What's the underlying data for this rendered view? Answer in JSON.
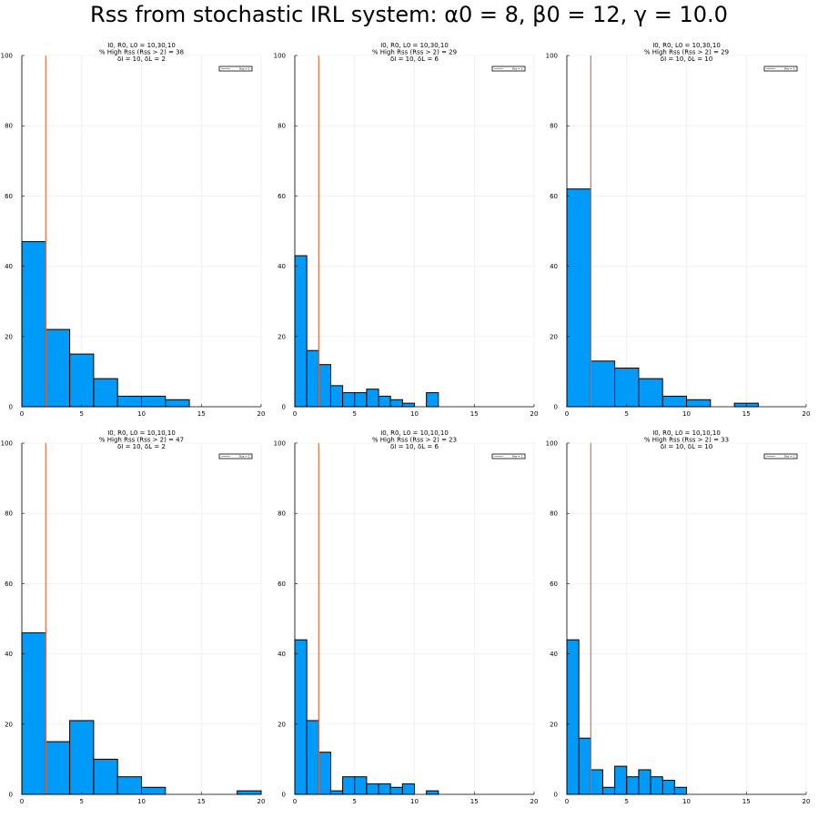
{
  "title": "Rss from stochastic IRL system: α0 = 8, β0 = 12, γ = 10.0",
  "colors": {
    "bar": "#009af9",
    "bar_edge": "#000000",
    "threshold": "#e26f46",
    "grid": "#e9e9e9"
  },
  "chart_data": [
    {
      "type": "bar",
      "title_lines": [
        "I0, R0, L0 = 10,30,10",
        "% High Rss (Rss > 2) = 38",
        "δI = 10, δL = 2"
      ],
      "legend": "Rss = 2",
      "bin_edges": [
        0,
        2,
        4,
        6,
        8,
        10,
        12,
        14
      ],
      "values": [
        47,
        22,
        15,
        8,
        3,
        3,
        2
      ],
      "threshold_x": 2,
      "xlim": [
        0,
        20
      ],
      "ylim": [
        0,
        100
      ],
      "xticks": [
        "0",
        "5",
        "10",
        "15",
        "20"
      ],
      "yticks": [
        "0",
        "20",
        "40",
        "60",
        "80",
        "100"
      ],
      "grid": true,
      "legend_position": "top-right"
    },
    {
      "type": "bar",
      "title_lines": [
        "I0, R0, L0 = 10,30,10",
        "% High Rss (Rss > 2) = 29",
        "δI = 10, δL = 6"
      ],
      "legend": "Rss = 2",
      "bin_edges": [
        0,
        1,
        2,
        3,
        4,
        5,
        6,
        7,
        8,
        9,
        10,
        11,
        12
      ],
      "values": [
        43,
        16,
        12,
        6,
        4,
        4,
        5,
        3,
        2,
        1,
        0,
        4
      ],
      "threshold_x": 2,
      "xlim": [
        0,
        20
      ],
      "ylim": [
        0,
        100
      ],
      "xticks": [
        "0",
        "5",
        "10",
        "15",
        "20"
      ],
      "yticks": [
        "0",
        "20",
        "40",
        "60",
        "80",
        "100"
      ],
      "grid": true,
      "legend_position": "top-right"
    },
    {
      "type": "bar",
      "title_lines": [
        "I0, R0, L0 = 10,30,10",
        "% High Rss (Rss > 2) = 29",
        "δI = 10, δL = 10"
      ],
      "legend": "Rss = 2",
      "bin_edges": [
        0,
        2,
        4,
        6,
        8,
        10,
        12,
        14,
        16
      ],
      "values": [
        62,
        13,
        11,
        8,
        3,
        2,
        0,
        1
      ],
      "threshold_x": 2,
      "xlim": [
        0,
        20
      ],
      "ylim": [
        0,
        100
      ],
      "xticks": [
        "0",
        "5",
        "10",
        "15",
        "20"
      ],
      "yticks": [
        "0",
        "20",
        "40",
        "60",
        "80",
        "100"
      ],
      "grid": true,
      "legend_position": "top-right"
    },
    {
      "type": "bar",
      "title_lines": [
        "I0, R0, L0 = 10,10,10",
        "% High Rss (Rss > 2) = 47",
        "δI = 10, δL = 2"
      ],
      "legend": "Rss = 2",
      "bin_edges": [
        0,
        2,
        4,
        6,
        8,
        10,
        12,
        14,
        16,
        18,
        20
      ],
      "values": [
        46,
        15,
        21,
        10,
        5,
        2,
        0,
        0,
        0,
        1
      ],
      "threshold_x": 2,
      "xlim": [
        0,
        20
      ],
      "ylim": [
        0,
        100
      ],
      "xticks": [
        "0",
        "5",
        "10",
        "15",
        "20"
      ],
      "yticks": [
        "0",
        "20",
        "40",
        "60",
        "80",
        "100"
      ],
      "grid": true,
      "legend_position": "top-right"
    },
    {
      "type": "bar",
      "title_lines": [
        "I0, R0, L0 = 10,10,10",
        "% High Rss (Rss > 2) = 23",
        "δI = 10, δL = 6"
      ],
      "legend": "Rss = 2",
      "bin_edges": [
        0,
        1,
        2,
        3,
        4,
        5,
        6,
        7,
        8,
        9,
        10,
        11,
        12
      ],
      "values": [
        44,
        21,
        12,
        1,
        5,
        5,
        3,
        3,
        2,
        3,
        0,
        1
      ],
      "threshold_x": 2,
      "xlim": [
        0,
        20
      ],
      "ylim": [
        0,
        100
      ],
      "xticks": [
        "0",
        "5",
        "10",
        "15",
        "20"
      ],
      "yticks": [
        "0",
        "20",
        "40",
        "60",
        "80",
        "100"
      ],
      "grid": true,
      "legend_position": "top-right"
    },
    {
      "type": "bar",
      "title_lines": [
        "I0, R0, L0 = 10,10,10",
        "% High Rss (Rss > 2) = 33",
        "δI = 10, δL = 10"
      ],
      "legend": "Rss = 2",
      "bin_edges": [
        0,
        1,
        2,
        3,
        4,
        5,
        6,
        7,
        8,
        9,
        10
      ],
      "values": [
        44,
        16,
        7,
        2,
        8,
        5,
        7,
        5,
        4,
        2
      ],
      "threshold_x": 2,
      "xlim": [
        0,
        20
      ],
      "ylim": [
        0,
        100
      ],
      "xticks": [
        "0",
        "5",
        "10",
        "15",
        "20"
      ],
      "yticks": [
        "0",
        "20",
        "40",
        "60",
        "80",
        "100"
      ],
      "grid": true,
      "legend_position": "top-right"
    }
  ]
}
